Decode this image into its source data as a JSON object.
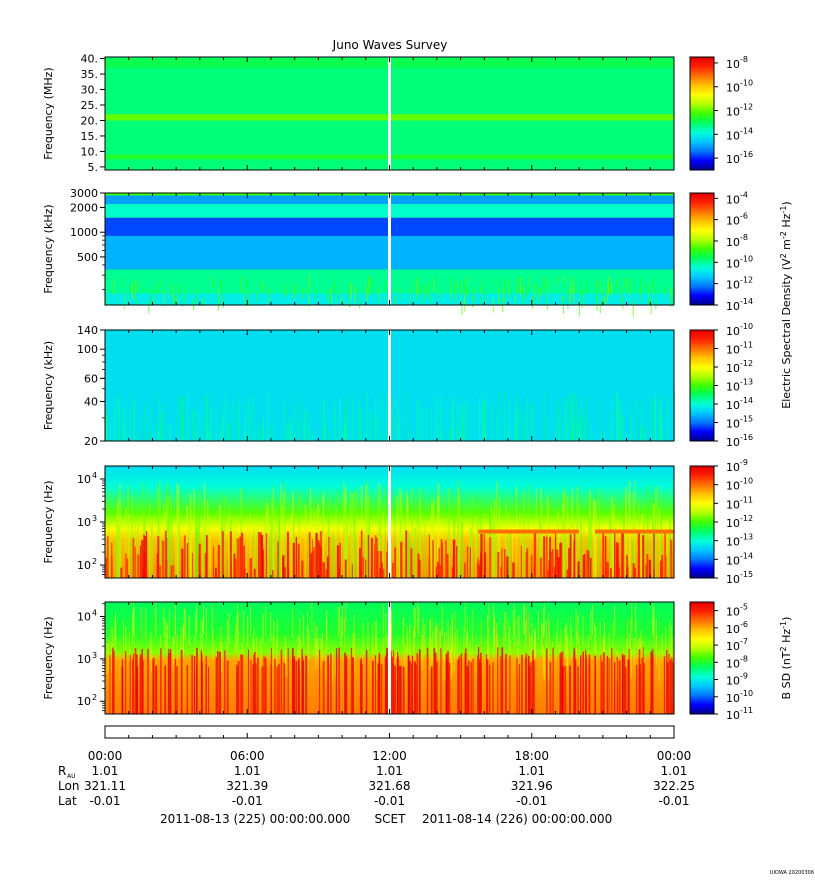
{
  "title": "Juno Waves Survey",
  "footer_stamp": "UIOWA 20200306",
  "colors": {
    "spectrum": [
      "#00008a",
      "#0000ff",
      "#0078ff",
      "#00c8ff",
      "#00ffd8",
      "#00ff60",
      "#3cff00",
      "#b4ff00",
      "#ffff00",
      "#ffc000",
      "#ff7000",
      "#ff2000",
      "#e00000"
    ],
    "panel_background": "#00f0a0",
    "data_gap": "#ffffff"
  },
  "right_axis_labels": [
    {
      "text": "Electric Spectral Density (V",
      "sup1": "2",
      "mid": " m",
      "sup2": "-2",
      "mid2": " Hz",
      "sup3": "-1",
      "end": ")"
    },
    {
      "text": "B SD (nT",
      "sup1": "2",
      "mid": " Hz",
      "sup2": "-1",
      "end": ")"
    }
  ],
  "chart_data": [
    {
      "type": "heatmap",
      "panel": "MHz",
      "ylabel": "Frequency (MHz)",
      "yscale": "linear",
      "ylim": [
        4,
        40.5
      ],
      "yticks": [
        {
          "v": 5,
          "label": "5."
        },
        {
          "v": 10,
          "label": "10."
        },
        {
          "v": 15,
          "label": "15."
        },
        {
          "v": 20,
          "label": "20."
        },
        {
          "v": 25,
          "label": "25."
        },
        {
          "v": 30,
          "label": "30."
        },
        {
          "v": 35,
          "label": "35."
        },
        {
          "v": 40,
          "label": "40."
        }
      ],
      "colorbar": {
        "scale": "log",
        "range_exp": [
          -17,
          -7.5
        ],
        "ticks": [
          -16,
          -14,
          -12,
          -10,
          -8
        ]
      },
      "level_exp": -13.2,
      "bands": [
        {
          "f": [
            20,
            22
          ],
          "exp": -12.0
        },
        {
          "f": [
            7.5,
            9
          ],
          "exp": -12.6
        },
        {
          "f": [
            37,
            40
          ],
          "exp": -12.9
        }
      ],
      "data_gap_time": "12:00"
    },
    {
      "type": "heatmap",
      "panel": "kHz-high",
      "ylabel": "Frequency (kHz)",
      "yscale": "log",
      "ylim": [
        130,
        3000
      ],
      "yticks": [
        {
          "v": 500,
          "label": "500"
        },
        {
          "v": 1000,
          "label": "1000"
        },
        {
          "v": 2000,
          "label": "2000"
        },
        {
          "v": 3000,
          "label": "3000"
        }
      ],
      "colorbar": {
        "scale": "log",
        "range_exp": [
          -14,
          -3.5
        ],
        "ticks": [
          -14,
          -12,
          -10,
          -8,
          -6,
          -4
        ]
      },
      "bands": [
        {
          "f": [
            2200,
            2800
          ],
          "exp": -11.8
        },
        {
          "f": [
            1500,
            2200
          ],
          "exp": -10.4
        },
        {
          "f": [
            900,
            1500
          ],
          "exp": -12.6
        },
        {
          "f": [
            350,
            900
          ],
          "exp": -11.6
        },
        {
          "f": [
            180,
            350
          ],
          "exp": -10.0
        },
        {
          "f": [
            130,
            180
          ],
          "exp": -10.8
        }
      ],
      "data_gap_time": "12:00"
    },
    {
      "type": "heatmap",
      "panel": "kHz-low",
      "ylabel": "Frequency (kHz)",
      "yscale": "log",
      "ylim": [
        20,
        140
      ],
      "yticks": [
        {
          "v": 20,
          "label": "20"
        },
        {
          "v": 40,
          "label": "40"
        },
        {
          "v": 60,
          "label": "60"
        },
        {
          "v": 100,
          "label": "100"
        },
        {
          "v": 140,
          "label": "140"
        }
      ],
      "colorbar": {
        "scale": "log",
        "range_exp": [
          -16,
          -10
        ],
        "ticks": [
          -16,
          -15,
          -14,
          -13,
          -12,
          -11,
          -10
        ]
      },
      "level_exp": -14.3,
      "data_gap_time": "12:00"
    },
    {
      "type": "heatmap",
      "panel": "Hz",
      "ylabel": "Frequency (Hz)",
      "yscale": "log",
      "ylim": [
        50,
        20000
      ],
      "yticks": [
        {
          "v": 100,
          "label": "10",
          "sup": "2"
        },
        {
          "v": 1000,
          "label": "10",
          "sup": "3"
        },
        {
          "v": 10000,
          "label": "10",
          "sup": "4"
        }
      ],
      "colorbar": {
        "scale": "log",
        "range_exp": [
          -15,
          -9
        ],
        "ticks": [
          -15,
          -14,
          -13,
          -12,
          -11,
          -10,
          -9
        ]
      },
      "line_feature": {
        "f_hz": 600,
        "time_start": "15:45",
        "time_end": "24:00",
        "exp": -10.0
      },
      "data_gap_time": "12:00"
    },
    {
      "type": "heatmap",
      "panel": "B",
      "ylabel": "Frequency (Hz)",
      "yscale": "log",
      "ylim": [
        50,
        22000
      ],
      "yticks": [
        {
          "v": 100,
          "label": "10",
          "sup": "2"
        },
        {
          "v": 1000,
          "label": "10",
          "sup": "3"
        },
        {
          "v": 10000,
          "label": "10",
          "sup": "4"
        }
      ],
      "colorbar": {
        "scale": "log",
        "range_exp": [
          -11,
          -4.5
        ],
        "ticks": [
          -11,
          -10,
          -9,
          -8,
          -7,
          -6,
          -5
        ]
      },
      "data_gap_time": "12:00"
    }
  ],
  "time_axis": {
    "ticks": [
      "00:00",
      "06:00",
      "12:00",
      "18:00",
      "00:00"
    ],
    "minor_per_major": 6,
    "rows": [
      {
        "label": "R",
        "label_sub": "AU",
        "values": [
          "1.01",
          "1.01",
          "1.01",
          "1.01",
          "1.01"
        ]
      },
      {
        "label": "Lon",
        "values": [
          "321.11",
          "321.39",
          "321.68",
          "321.96",
          "322.25"
        ]
      },
      {
        "label": "Lat",
        "values": [
          "-0.01",
          "-0.01",
          "-0.01",
          "-0.01",
          "-0.01"
        ]
      }
    ],
    "scet_line": {
      "start": "2011-08-13 (225) 00:00:00.000",
      "mid": "SCET",
      "end": "2011-08-14 (226) 00:00:00.000"
    }
  }
}
